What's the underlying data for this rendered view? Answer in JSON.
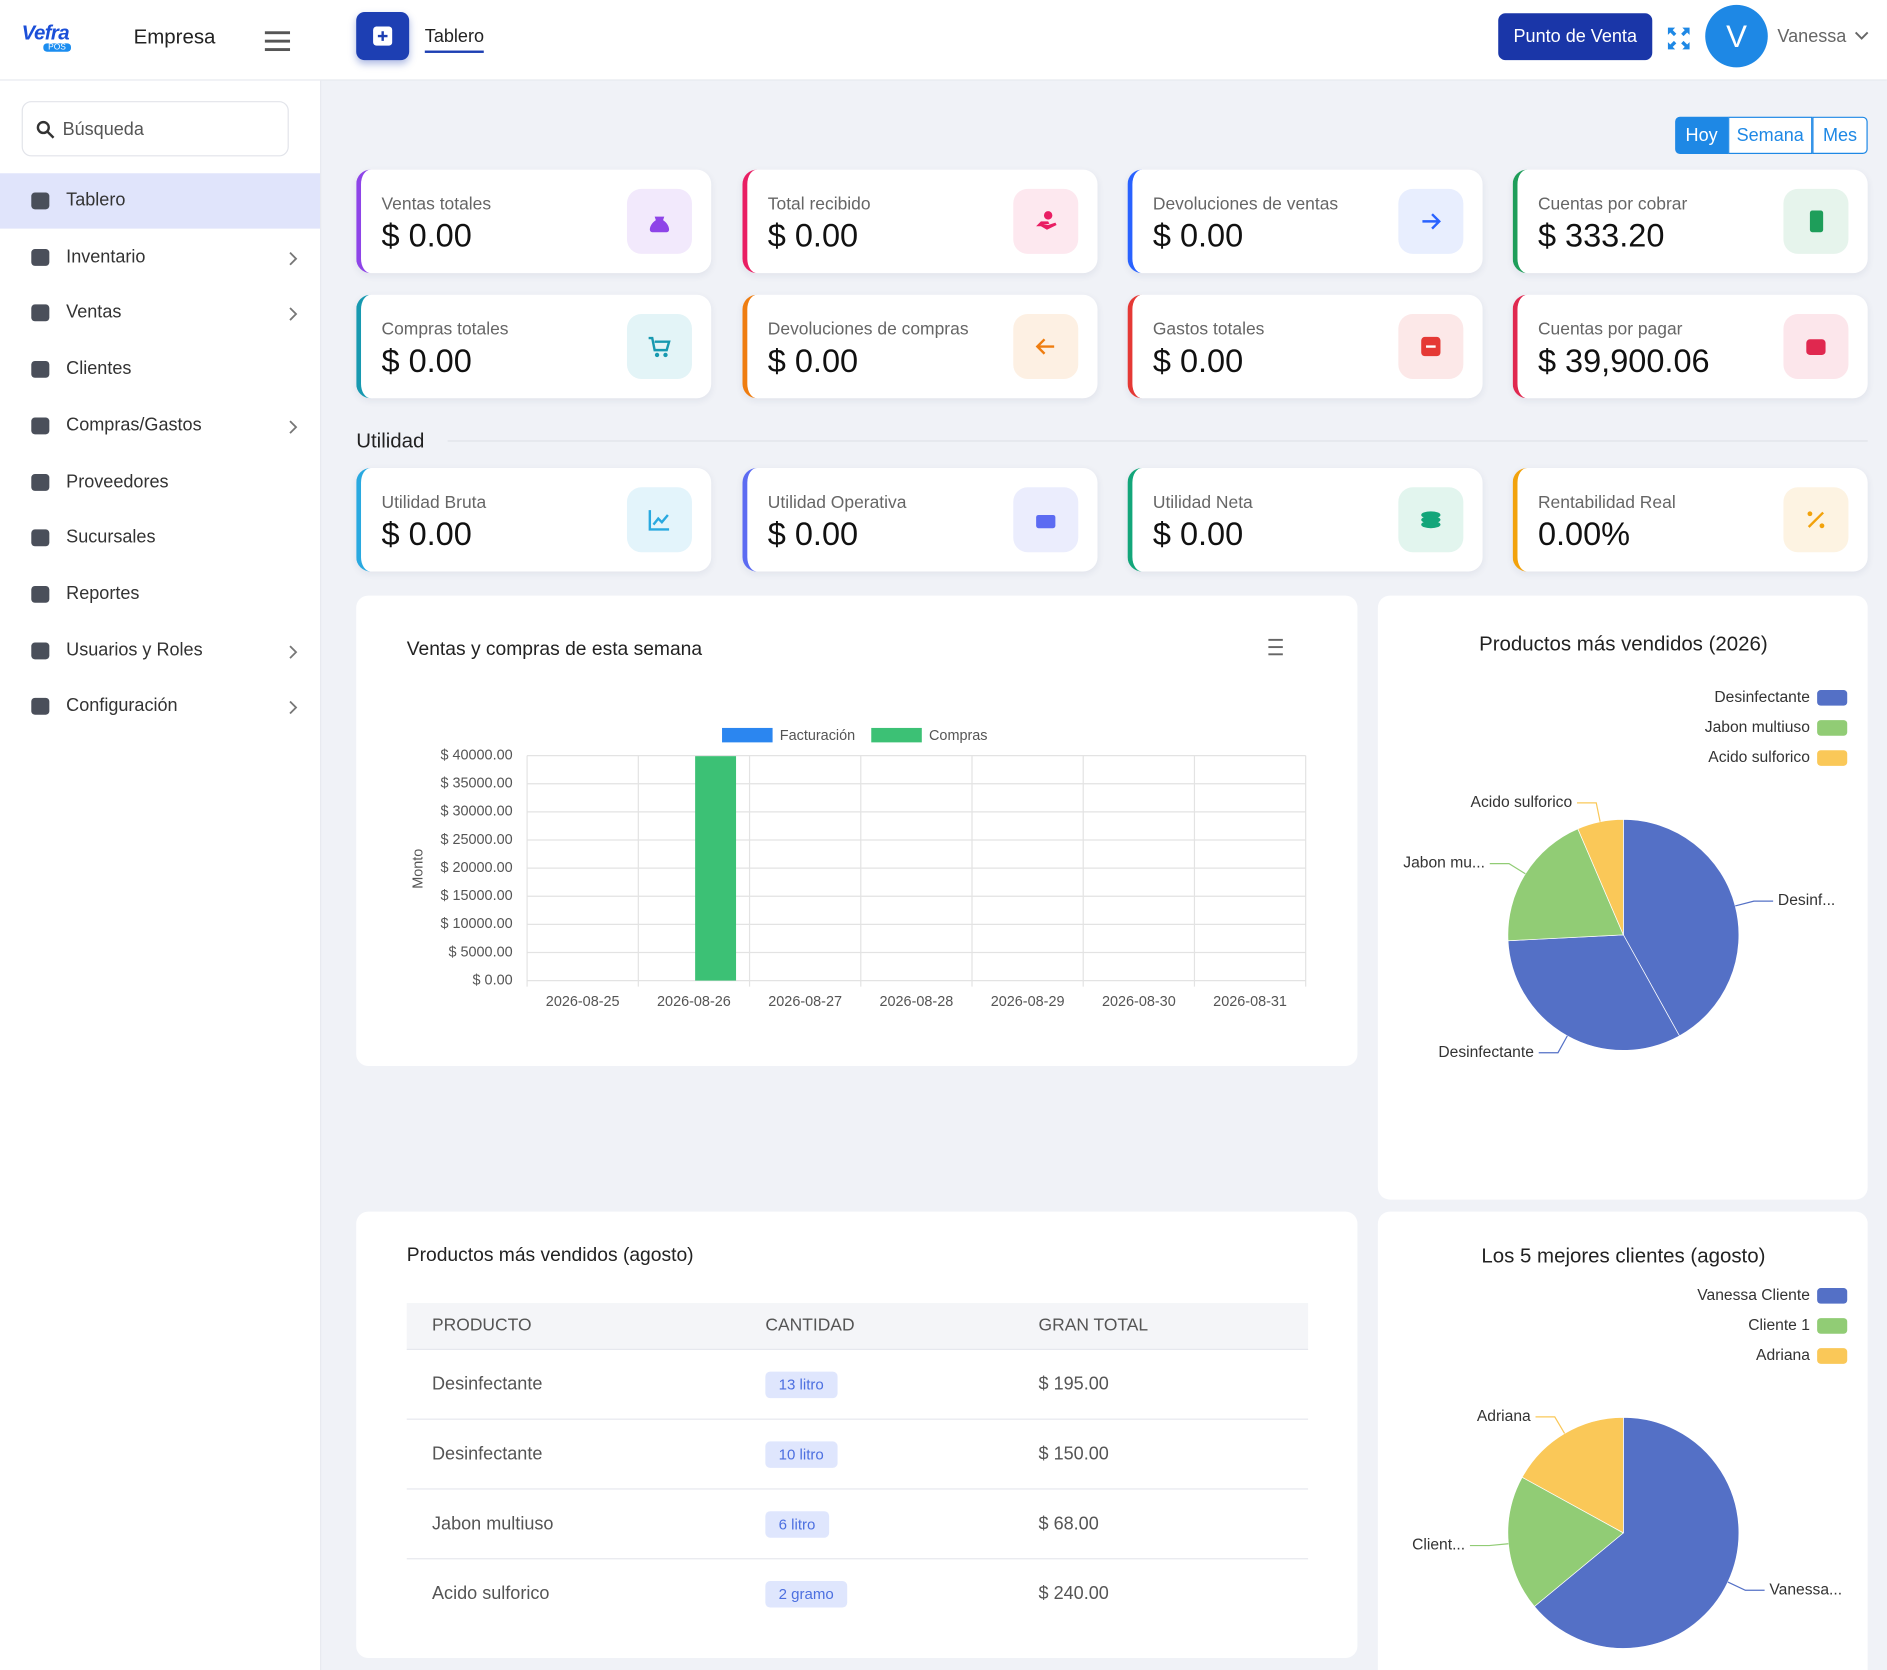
{
  "header": {
    "brand": "Vefra",
    "brand_sub": "POS",
    "company": "Empresa",
    "tab": "Tablero",
    "pos_button": "Punto de Venta",
    "avatar": "V",
    "user": "Vanessa"
  },
  "sidebar": {
    "search_placeholder": "Búsqueda",
    "menu": [
      {
        "label": "Tablero",
        "active": true
      },
      {
        "label": "Inventario",
        "submenu": true
      },
      {
        "label": "Ventas",
        "submenu": true
      },
      {
        "label": "Clientes"
      },
      {
        "label": "Compras/Gastos",
        "submenu": true
      },
      {
        "label": "Proveedores"
      },
      {
        "label": "Sucursales"
      },
      {
        "label": "Reportes"
      },
      {
        "label": "Usuarios y Roles",
        "submenu": true
      },
      {
        "label": "Configuración",
        "submenu": true
      }
    ]
  },
  "period_buttons": [
    {
      "label": "Hoy",
      "active": true
    },
    {
      "label": "Semana"
    },
    {
      "label": "Mes"
    }
  ],
  "cards": [
    {
      "label": "Ventas totales",
      "value": "$ 0.00",
      "color": "#8e44e8",
      "icon_bg": "#f2e9fc"
    },
    {
      "label": "Total recibido",
      "value": "$ 0.00",
      "color": "#e91e63",
      "icon_bg": "#fde8ef"
    },
    {
      "label": "Devoluciones de ventas",
      "value": "$ 0.00",
      "color": "#2962ff",
      "icon_bg": "#e8eefe"
    },
    {
      "label": "Cuentas por cobrar",
      "value": "$ 333.20",
      "color": "#1e9e5a",
      "icon_bg": "#e6f4ec"
    },
    {
      "label": "Compras totales",
      "value": "$ 0.00",
      "color": "#1799b0",
      "icon_bg": "#e3f4f7"
    },
    {
      "label": "Devoluciones de compras",
      "value": "$ 0.00",
      "color": "#ef7d10",
      "icon_bg": "#fdf0e3"
    },
    {
      "label": "Gastos totales",
      "value": "$ 0.00",
      "color": "#e53935",
      "icon_bg": "#fce8e8"
    },
    {
      "label": "Cuentas por pagar",
      "value": "$ 39,900.06",
      "color": "#e0284f",
      "icon_bg": "#fce6eb"
    }
  ],
  "profit": {
    "title": "Utilidad",
    "cards": [
      {
        "label": "Utilidad Bruta",
        "value": "$ 0.00",
        "color": "#29a9e0",
        "icon_bg": "#e3f4fb"
      },
      {
        "label": "Utilidad Operativa",
        "value": "$ 0.00",
        "color": "#5c6bf2",
        "icon_bg": "#ebedfd"
      },
      {
        "label": "Utilidad Neta",
        "value": "$ 0.00",
        "color": "#13a67a",
        "icon_bg": "#e2f5ee"
      },
      {
        "label": "Rentabilidad Real",
        "value": "0.00%",
        "color": "#f2a20c",
        "icon_bg": "#fdf3e2"
      }
    ]
  },
  "chart_data": [
    {
      "type": "bar",
      "title": "Ventas y compras de esta semana",
      "ylabel": "Monto",
      "categories": [
        "2026-08-25",
        "2026-08-26",
        "2026-08-27",
        "2026-08-28",
        "2026-08-29",
        "2026-08-30",
        "2026-08-31"
      ],
      "series": [
        {
          "name": "Facturación",
          "color": "#2b86f0",
          "values": [
            0,
            0,
            0,
            0,
            0,
            0,
            0
          ]
        },
        {
          "name": "Compras",
          "color": "#3cc175",
          "values": [
            0,
            39900,
            0,
            0,
            0,
            0,
            0
          ]
        }
      ],
      "ylim": [
        0,
        40000
      ],
      "yticks": [
        {
          "value": 0,
          "label": "$ 0.00"
        },
        {
          "value": 5000,
          "label": "$ 5000.00"
        },
        {
          "value": 10000,
          "label": "$ 10000.00"
        },
        {
          "value": 15000,
          "label": "$ 15000.00"
        },
        {
          "value": 20000,
          "label": "$ 20000.00"
        },
        {
          "value": 25000,
          "label": "$ 25000.00"
        },
        {
          "value": 30000,
          "label": "$ 30000.00"
        },
        {
          "value": 35000,
          "label": "$ 35000.00"
        },
        {
          "value": 40000,
          "label": "$ 40000.00"
        }
      ],
      "grid": true,
      "legend": "top"
    },
    {
      "type": "pie",
      "title": "Productos más vendidos (2026)",
      "categories": [
        "Desinfectante",
        "Desinfectante",
        "Jabon multiuso",
        "Acido sulforico"
      ],
      "values": [
        13,
        10,
        6,
        2
      ],
      "colors": [
        "#5470c6",
        "#5470c6",
        "#91cc75",
        "#fac858"
      ],
      "slice_labels": [
        "Desinf...",
        "Desinfectante",
        "Jabon mu...",
        "Acido sulforico"
      ],
      "legend": "top-right"
    },
    {
      "type": "pie",
      "title": "Los 5 mejores clientes (agosto)",
      "categories": [
        "Vanessa Cliente",
        "Cliente 1",
        "Adriana"
      ],
      "values": [
        64,
        19,
        17
      ],
      "colors": [
        "#5470c6",
        "#91cc75",
        "#fac858"
      ],
      "slice_labels": [
        "Vanessa...",
        "Client...",
        "Adriana"
      ],
      "legend": "top-right"
    }
  ],
  "table": {
    "title": "Productos más vendidos (agosto)",
    "columns": [
      "PRODUCTO",
      "CANTIDAD",
      "GRAN TOTAL"
    ],
    "rows": [
      [
        "Desinfectante",
        "13 litro",
        "$ 195.00"
      ],
      [
        "Desinfectante",
        "10 litro",
        "$ 150.00"
      ],
      [
        "Jabon multiuso",
        "6 litro",
        "$ 68.00"
      ],
      [
        "Acido sulforico",
        "2 gramo",
        "$ 240.00"
      ]
    ]
  }
}
